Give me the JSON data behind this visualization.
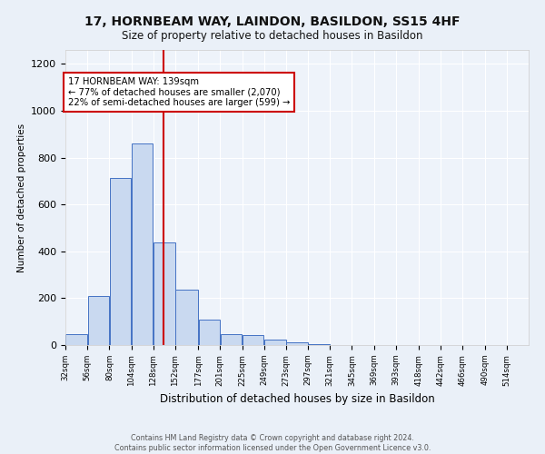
{
  "title": "17, HORNBEAM WAY, LAINDON, BASILDON, SS15 4HF",
  "subtitle": "Size of property relative to detached houses in Basildon",
  "xlabel": "Distribution of detached houses by size in Basildon",
  "ylabel": "Number of detached properties",
  "footnote1": "Contains HM Land Registry data © Crown copyright and database right 2024.",
  "footnote2": "Contains public sector information licensed under the Open Government Licence v3.0.",
  "annotation_line1": "17 HORNBEAM WAY: 139sqm",
  "annotation_line2": "← 77% of detached houses are smaller (2,070)",
  "annotation_line3": "22% of semi-detached houses are larger (599) →",
  "bar_left_edges": [
    32,
    56,
    80,
    104,
    128,
    152,
    177,
    201,
    225,
    249,
    273,
    297,
    321,
    345,
    369,
    393,
    418,
    442,
    466,
    490
  ],
  "bar_widths": [
    24,
    24,
    24,
    24,
    24,
    25,
    24,
    24,
    24,
    24,
    24,
    24,
    24,
    24,
    24,
    25,
    24,
    24,
    24,
    24
  ],
  "bar_heights": [
    47,
    211,
    712,
    862,
    440,
    235,
    108,
    47,
    42,
    22,
    12,
    5,
    1,
    0,
    0,
    0,
    0,
    0,
    0,
    0
  ],
  "bar_facecolor": "#c9d9f0",
  "bar_edgecolor": "#4472c4",
  "tick_labels": [
    "32sqm",
    "56sqm",
    "80sqm",
    "104sqm",
    "128sqm",
    "152sqm",
    "177sqm",
    "201sqm",
    "225sqm",
    "249sqm",
    "273sqm",
    "297sqm",
    "321sqm",
    "345sqm",
    "369sqm",
    "393sqm",
    "418sqm",
    "442sqm",
    "466sqm",
    "490sqm",
    "514sqm"
  ],
  "vline_x": 139,
  "vline_color": "#cc0000",
  "ylim": [
    0,
    1260
  ],
  "xlim": [
    32,
    538
  ],
  "bg_color": "#eaf0f8",
  "plot_bg_color": "#eef3fa",
  "grid_color": "#ffffff",
  "annotation_box_color": "#ffffff",
  "annotation_box_edgecolor": "#cc0000"
}
